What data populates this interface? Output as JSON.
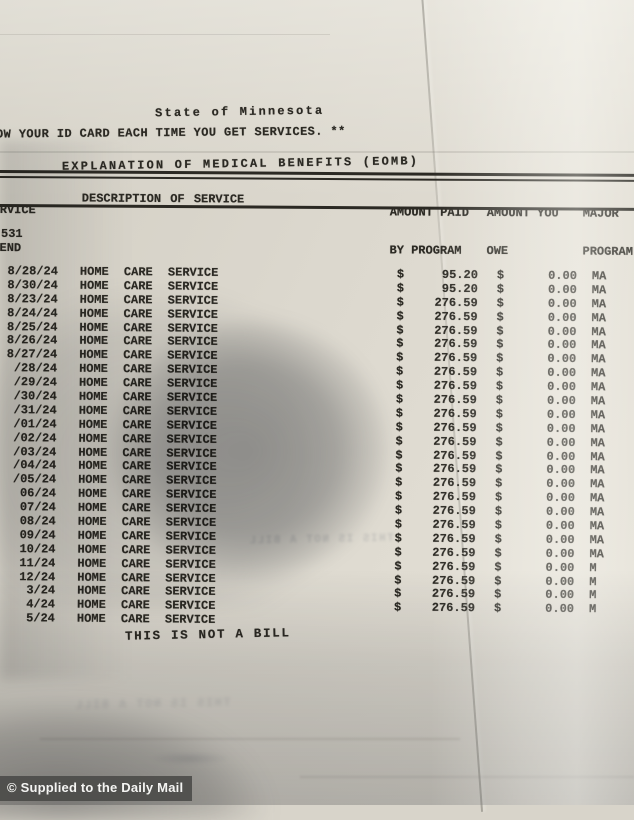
{
  "colors": {
    "paper_light": "#e6e2d8",
    "paper_shadow": "#a6a6a2",
    "ink": "#2b2923",
    "credit_chip": "#464644",
    "credit_text": "#f4f4f2"
  },
  "doc": {
    "title1": "State of Minnesota",
    "title2": "EXPLANATION OF MEDICAL BENEFITS (EOMB)",
    "notice": "OW YOUR ID CARD EACH TIME YOU GET SERVICES. **",
    "claim_fragment": "531",
    "not_a_bill": "THIS IS NOT A BILL",
    "ghost_text": "THIS IS NOT A BILL",
    "header": {
      "col_service_l1": "RVICE",
      "col_service_l2": "END",
      "col_description": "DESCRIPTION OF SERVICE",
      "col_paid_l1": "AMOUNT PAID",
      "col_paid_l2": "BY PROGRAM",
      "col_owe_l1": "AMOUNT YOU",
      "col_owe_l2": "OWE",
      "col_major_l1": "MAJOR",
      "col_major_l2": "PROGRAM"
    },
    "rows": [
      {
        "date": "8/28/24",
        "desc": "HOME CARE SERVICE",
        "cur1": "$",
        "paid": "95.20",
        "cur2": "$",
        "owe": "0.00",
        "prog": "MA"
      },
      {
        "date": "8/30/24",
        "desc": "HOME CARE SERVICE",
        "cur1": "$",
        "paid": "95.20",
        "cur2": "$",
        "owe": "0.00",
        "prog": "MA"
      },
      {
        "date": "8/23/24",
        "desc": "HOME CARE SERVICE",
        "cur1": "$",
        "paid": "276.59",
        "cur2": "$",
        "owe": "0.00",
        "prog": "MA"
      },
      {
        "date": "8/24/24",
        "desc": "HOME CARE SERVICE",
        "cur1": "$",
        "paid": "276.59",
        "cur2": "$",
        "owe": "0.00",
        "prog": "MA"
      },
      {
        "date": "8/25/24",
        "desc": "HOME CARE SERVICE",
        "cur1": "$",
        "paid": "276.59",
        "cur2": "$",
        "owe": "0.00",
        "prog": "MA"
      },
      {
        "date": "8/26/24",
        "desc": "HOME CARE SERVICE",
        "cur1": "$",
        "paid": "276.59",
        "cur2": "$",
        "owe": "0.00",
        "prog": "MA"
      },
      {
        "date": "8/27/24",
        "desc": "HOME CARE SERVICE",
        "cur1": "$",
        "paid": "276.59",
        "cur2": "$",
        "owe": "0.00",
        "prog": "MA"
      },
      {
        "date": "/28/24",
        "desc": "HOME CARE SERVICE",
        "cur1": "$",
        "paid": "276.59",
        "cur2": "$",
        "owe": "0.00",
        "prog": "MA"
      },
      {
        "date": "/29/24",
        "desc": "HOME CARE SERVICE",
        "cur1": "$",
        "paid": "276.59",
        "cur2": "$",
        "owe": "0.00",
        "prog": "MA"
      },
      {
        "date": "/30/24",
        "desc": "HOME CARE SERVICE",
        "cur1": "$",
        "paid": "276.59",
        "cur2": "$",
        "owe": "0.00",
        "prog": "MA"
      },
      {
        "date": "/31/24",
        "desc": "HOME CARE SERVICE",
        "cur1": "$",
        "paid": "276.59",
        "cur2": "$",
        "owe": "0.00",
        "prog": "MA"
      },
      {
        "date": "/01/24",
        "desc": "HOME CARE SERVICE",
        "cur1": "$",
        "paid": "276.59",
        "cur2": "$",
        "owe": "0.00",
        "prog": "MA"
      },
      {
        "date": "/02/24",
        "desc": "HOME CARE SERVICE",
        "cur1": "$",
        "paid": "276.59",
        "cur2": "$",
        "owe": "0.00",
        "prog": "MA"
      },
      {
        "date": "/03/24",
        "desc": "HOME CARE SERVICE",
        "cur1": "$",
        "paid": "276.59",
        "cur2": "$",
        "owe": "0.00",
        "prog": "MA"
      },
      {
        "date": "/04/24",
        "desc": "HOME CARE SERVICE",
        "cur1": "$",
        "paid": "276.59",
        "cur2": "$",
        "owe": "0.00",
        "prog": "MA"
      },
      {
        "date": "/05/24",
        "desc": "HOME CARE SERVICE",
        "cur1": "$",
        "paid": "276.59",
        "cur2": "$",
        "owe": "0.00",
        "prog": "MA"
      },
      {
        "date": "06/24",
        "desc": "HOME CARE SERVICE",
        "cur1": "$",
        "paid": "276.59",
        "cur2": "$",
        "owe": "0.00",
        "prog": "MA"
      },
      {
        "date": "07/24",
        "desc": "HOME CARE SERVICE",
        "cur1": "$",
        "paid": "276.59",
        "cur2": "$",
        "owe": "0.00",
        "prog": "MA"
      },
      {
        "date": "08/24",
        "desc": "HOME CARE SERVICE",
        "cur1": "$",
        "paid": "276.59",
        "cur2": "$",
        "owe": "0.00",
        "prog": "MA"
      },
      {
        "date": "09/24",
        "desc": "HOME CARE SERVICE",
        "cur1": "$",
        "paid": "276.59",
        "cur2": "$",
        "owe": "0.00",
        "prog": "MA"
      },
      {
        "date": "10/24",
        "desc": "HOME CARE SERVICE",
        "cur1": "$",
        "paid": "276.59",
        "cur2": "$",
        "owe": "0.00",
        "prog": "MA"
      },
      {
        "date": "11/24",
        "desc": "HOME CARE SERVICE",
        "cur1": "$",
        "paid": "276.59",
        "cur2": "$",
        "owe": "0.00",
        "prog": "M"
      },
      {
        "date": "12/24",
        "desc": "HOME CARE SERVICE",
        "cur1": "$",
        "paid": "276.59",
        "cur2": "$",
        "owe": "0.00",
        "prog": "M"
      },
      {
        "date": "3/24",
        "desc": "HOME CARE SERVICE",
        "cur1": "$",
        "paid": "276.59",
        "cur2": "$",
        "owe": "0.00",
        "prog": "M"
      },
      {
        "date": "4/24",
        "desc": "HOME CARE SERVICE",
        "cur1": "$",
        "paid": "276.59",
        "cur2": "$",
        "owe": "0.00",
        "prog": "M"
      },
      {
        "date": "5/24",
        "desc": "HOME CARE SERVICE",
        "cur1": "",
        "paid": "",
        "cur2": "",
        "owe": "",
        "prog": ""
      }
    ]
  },
  "credit": {
    "label": "© Supplied to the Daily Mail"
  }
}
